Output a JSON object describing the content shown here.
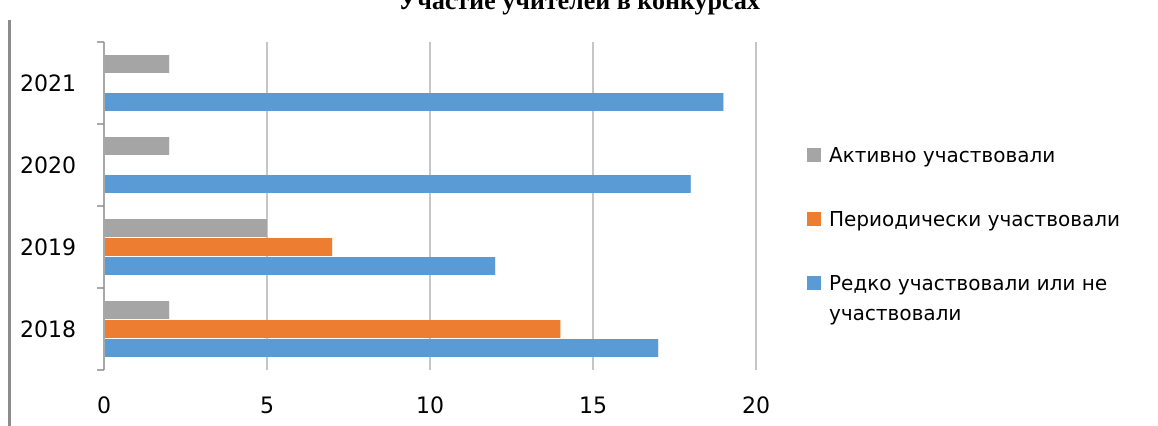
{
  "chart_data": {
    "type": "bar",
    "orientation": "horizontal",
    "title": "Участие учителей в конкурсах",
    "categories": [
      "2018",
      "2019",
      "2020",
      "2021"
    ],
    "series": [
      {
        "name": "Редко участвовали или не участвовали",
        "color": "#5b9bd5",
        "values": [
          17,
          12,
          18,
          19
        ]
      },
      {
        "name": "Периодически участвовали",
        "color": "#ed7d31",
        "values": [
          14,
          7,
          null,
          null
        ]
      },
      {
        "name": "Активно участвовали",
        "color": "#a5a5a5",
        "values": [
          2,
          5,
          2,
          2
        ]
      }
    ],
    "xlim": [
      0,
      20
    ],
    "xticks": [
      "0",
      "5",
      "10",
      "15",
      "20"
    ],
    "grid": "vertical",
    "legend_position": "right",
    "legend": [
      {
        "label": "Активно участвовали",
        "color": "#a5a5a5"
      },
      {
        "label": "Периодически участвовали",
        "color": "#ed7d31"
      },
      {
        "label": "Редко участвовали или не участвовали",
        "color": "#5b9bd5"
      }
    ]
  }
}
